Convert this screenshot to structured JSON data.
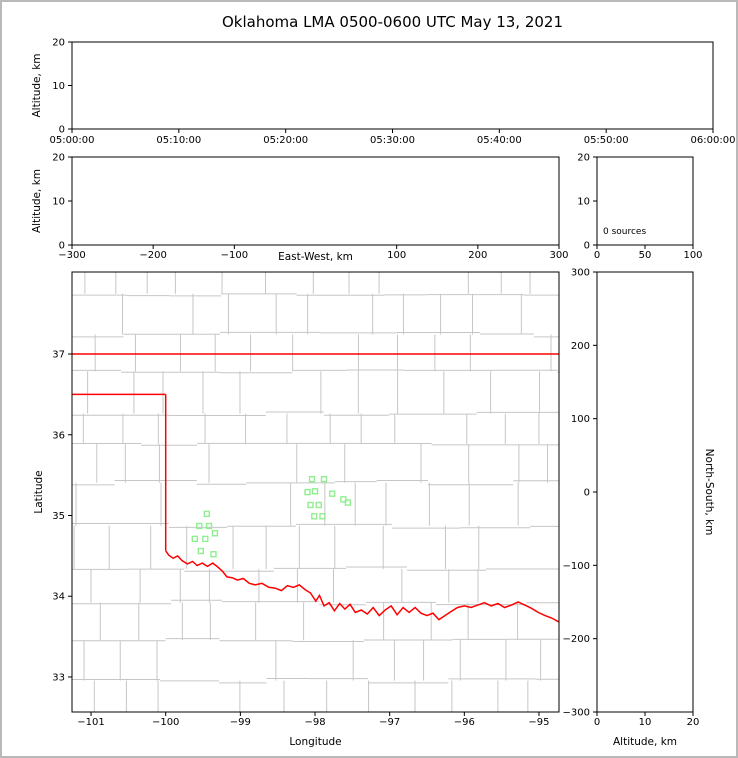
{
  "title": "Oklahoma LMA 0500-0600 UTC May 13, 2021",
  "colors": {
    "state_border": "#ff0000",
    "county_lines": "#c6c6c6",
    "stations": "#90ee90",
    "frame": "#000000",
    "figure_border": "#b9b9b9",
    "background": "#ffffff"
  },
  "chart_data": {
    "type": "scatter",
    "figure": "LMA multi-panel: time-height, east-west height, altitude histogram, plan-view map, north-south height",
    "source_count": 0,
    "panels": {
      "time_height": {
        "type": "scatter",
        "ylabel": "Altitude, km",
        "ylim": [
          0,
          20
        ],
        "y_ticks": [
          0,
          10,
          20
        ],
        "x_ticks": [
          "05:00:00",
          "05:10:00",
          "05:20:00",
          "05:30:00",
          "05:40:00",
          "05:50:00",
          "06:00:00"
        ],
        "points": []
      },
      "ew_height": {
        "type": "scatter",
        "xlabel": "East-West, km",
        "ylabel": "Altitude, km",
        "xlim": [
          -300,
          300
        ],
        "x_ticks": [
          -300,
          -200,
          -100,
          100,
          200,
          300
        ],
        "ylim": [
          0,
          20
        ],
        "y_ticks": [
          0,
          10,
          20
        ],
        "points": []
      },
      "alt_histogram": {
        "type": "histogram",
        "xlim": [
          0,
          100
        ],
        "x_ticks": [
          0,
          50,
          100
        ],
        "ylim": [
          0,
          20
        ],
        "y_ticks": [
          20,
          10,
          0
        ],
        "annotation": "0 sources",
        "values": []
      },
      "plan_view": {
        "type": "map",
        "xlabel": "Longitude",
        "ylabel": "Latitude",
        "xlim": [
          -101.255,
          -94.732
        ],
        "x_ticks": [
          -101,
          -100,
          -99,
          -98,
          -97,
          -96,
          -95
        ],
        "ylim": [
          32.566,
          38.016
        ],
        "y_ticks": [
          33,
          34,
          35,
          36,
          37
        ],
        "stations": [
          [
            -98.04,
            35.45
          ],
          [
            -97.88,
            35.45
          ],
          [
            -98.1,
            35.29
          ],
          [
            -98.0,
            35.3
          ],
          [
            -97.77,
            35.27
          ],
          [
            -97.62,
            35.2
          ],
          [
            -97.56,
            35.16
          ],
          [
            -98.06,
            35.13
          ],
          [
            -97.95,
            35.13
          ],
          [
            -98.01,
            34.99
          ],
          [
            -97.9,
            34.99
          ],
          [
            -99.45,
            35.02
          ],
          [
            -99.55,
            34.87
          ],
          [
            -99.42,
            34.87
          ],
          [
            -99.61,
            34.71
          ],
          [
            -99.47,
            34.71
          ],
          [
            -99.34,
            34.78
          ],
          [
            -99.53,
            34.56
          ],
          [
            -99.36,
            34.52
          ]
        ],
        "state_border": {
          "north_lat": 37.0,
          "panhandle_south_lat": 36.5,
          "west_lon": -100.0,
          "red_river": [
            [
              -100.0,
              34.563
            ],
            [
              -99.96,
              34.51
            ],
            [
              -99.9,
              34.47
            ],
            [
              -99.84,
              34.5
            ],
            [
              -99.78,
              34.44
            ],
            [
              -99.71,
              34.4
            ],
            [
              -99.64,
              34.43
            ],
            [
              -99.58,
              34.38
            ],
            [
              -99.51,
              34.41
            ],
            [
              -99.44,
              34.37
            ],
            [
              -99.37,
              34.41
            ],
            [
              -99.3,
              34.36
            ],
            [
              -99.24,
              34.31
            ],
            [
              -99.18,
              34.24
            ],
            [
              -99.11,
              34.23
            ],
            [
              -99.04,
              34.2
            ],
            [
              -98.96,
              34.22
            ],
            [
              -98.88,
              34.16
            ],
            [
              -98.8,
              34.14
            ],
            [
              -98.71,
              34.16
            ],
            [
              -98.62,
              34.11
            ],
            [
              -98.53,
              34.1
            ],
            [
              -98.45,
              34.07
            ],
            [
              -98.37,
              34.13
            ],
            [
              -98.29,
              34.11
            ],
            [
              -98.21,
              34.14
            ],
            [
              -98.13,
              34.08
            ],
            [
              -98.06,
              34.04
            ],
            [
              -97.99,
              33.94
            ],
            [
              -97.94,
              34.01
            ],
            [
              -97.88,
              33.88
            ],
            [
              -97.81,
              33.92
            ],
            [
              -97.74,
              33.82
            ],
            [
              -97.67,
              33.91
            ],
            [
              -97.6,
              33.84
            ],
            [
              -97.53,
              33.9
            ],
            [
              -97.46,
              33.8
            ],
            [
              -97.38,
              33.83
            ],
            [
              -97.3,
              33.78
            ],
            [
              -97.22,
              33.86
            ],
            [
              -97.14,
              33.76
            ],
            [
              -97.06,
              33.83
            ],
            [
              -96.98,
              33.88
            ],
            [
              -96.9,
              33.77
            ],
            [
              -96.82,
              33.86
            ],
            [
              -96.74,
              33.8
            ],
            [
              -96.66,
              33.86
            ],
            [
              -96.58,
              33.79
            ],
            [
              -96.5,
              33.76
            ],
            [
              -96.42,
              33.79
            ],
            [
              -96.34,
              33.71
            ],
            [
              -96.26,
              33.76
            ],
            [
              -96.18,
              33.81
            ],
            [
              -96.09,
              33.86
            ],
            [
              -96.0,
              33.88
            ],
            [
              -95.91,
              33.86
            ],
            [
              -95.82,
              33.89
            ],
            [
              -95.73,
              33.92
            ],
            [
              -95.64,
              33.88
            ],
            [
              -95.55,
              33.91
            ],
            [
              -95.46,
              33.86
            ],
            [
              -95.37,
              33.89
            ],
            [
              -95.28,
              33.93
            ],
            [
              -95.19,
              33.89
            ],
            [
              -95.1,
              33.85
            ],
            [
              -95.01,
              33.8
            ],
            [
              -94.92,
              33.76
            ],
            [
              -94.83,
              33.73
            ],
            [
              -94.73,
              33.68
            ]
          ]
        },
        "county_grid": {
          "lat_min": 32.566,
          "lat_max": 38.016,
          "lon_min": -101.255,
          "lon_max": -94.732,
          "lat_step": 0.43,
          "lon_step": 0.5
        }
      },
      "ns_height": {
        "type": "scatter",
        "xlabel": "Altitude, km",
        "ylabel": "North-South, km",
        "xlim": [
          0,
          20
        ],
        "x_ticks": [
          0,
          10,
          20
        ],
        "ylim": [
          -300,
          300
        ],
        "y_ticks": [
          300,
          200,
          100,
          0,
          -100,
          -200,
          -300
        ],
        "points": []
      }
    }
  }
}
